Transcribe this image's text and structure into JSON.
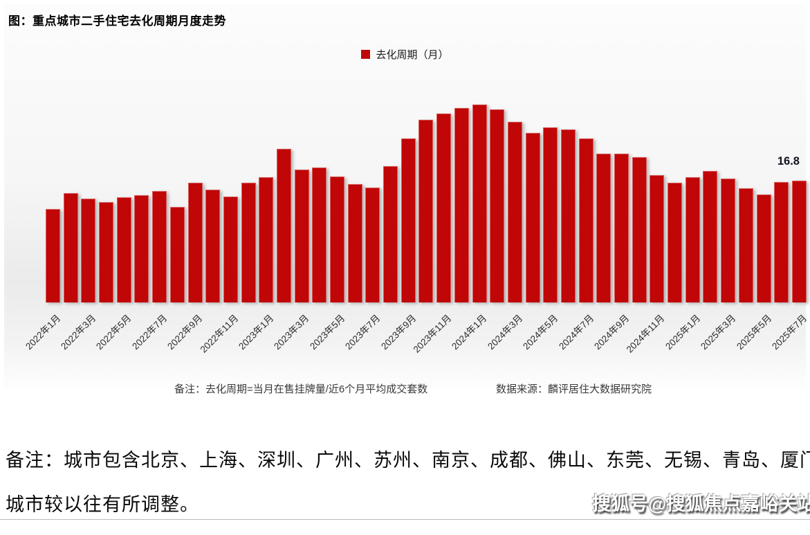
{
  "page": {
    "note_line1": "备注：城市包含北京、上海、深圳、广州、苏州、南京、成都、佛山、东莞、无锡、青岛、厦门、郑州，",
    "note_line2": "城市较以往有所调整。",
    "watermark": "搜狐号@搜狐焦点嘉峪关站"
  },
  "chart": {
    "title": "图：重点城市二手住宅去化周期月度走势",
    "legend_label": "去化周期（月）",
    "footnote_left": "备注：去化周期=当月在售挂牌量/近6个月平均成交套数",
    "footnote_right": "数据来源：麟评居住大数据研究院",
    "bar_color": "#c00606",
    "annotation": {
      "label": "16.8",
      "category": "2025年7月"
    }
  },
  "chart_data": {
    "type": "bar",
    "title": "重点城市二手住宅去化周期月度走势",
    "series_name": "去化周期（月）",
    "categories": [
      "2022年1月",
      "2022年2月",
      "2022年3月",
      "2022年4月",
      "2022年5月",
      "2022年6月",
      "2022年7月",
      "2022年8月",
      "2022年9月",
      "2022年10月",
      "2022年11月",
      "2022年12月",
      "2023年1月",
      "2023年2月",
      "2023年3月",
      "2023年4月",
      "2023年5月",
      "2023年6月",
      "2023年7月",
      "2023年8月",
      "2023年9月",
      "2023年10月",
      "2023年11月",
      "2023年12月",
      "2024年1月",
      "2024年2月",
      "2024年3月",
      "2024年4月",
      "2024年5月",
      "2024年6月",
      "2024年7月",
      "2024年8月",
      "2024年9月",
      "2024年10月",
      "2024年11月",
      "2024年12月",
      "2025年1月",
      "2025年2月",
      "2025年3月",
      "2025年4月",
      "2025年5月",
      "2025年6月",
      "2025年7月"
    ],
    "values": [
      12.9,
      15.0,
      14.3,
      13.8,
      14.5,
      14.8,
      15.3,
      13.1,
      16.5,
      15.5,
      14.6,
      16.5,
      17.2,
      21.1,
      18.3,
      18.6,
      17.3,
      16.3,
      15.8,
      18.8,
      22.6,
      25.1,
      26.0,
      26.8,
      27.2,
      26.6,
      24.9,
      23.3,
      24.1,
      23.8,
      22.6,
      20.5,
      20.5,
      20.0,
      17.5,
      16.5,
      17.2,
      18.1,
      17.0,
      15.7,
      14.9,
      16.6,
      16.8
    ],
    "x_tick_labels": [
      "2022年1月",
      "2022年3月",
      "2022年5月",
      "2022年7月",
      "2022年9月",
      "2022年11月",
      "2023年1月",
      "2023年3月",
      "2023年5月",
      "2023年7月",
      "2023年9月",
      "2023年11月",
      "2024年1月",
      "2024年3月",
      "2024年5月",
      "2024年7月",
      "2024年9月",
      "2024年11月",
      "2025年1月",
      "2025年3月",
      "2025年5月",
      "2025年7月"
    ],
    "data_labels": [
      {
        "category": "2025年7月",
        "value": 16.8
      }
    ],
    "ylim": [
      0,
      28
    ],
    "y_axis_visible": false,
    "grid": false,
    "legend_position": "top-center"
  }
}
